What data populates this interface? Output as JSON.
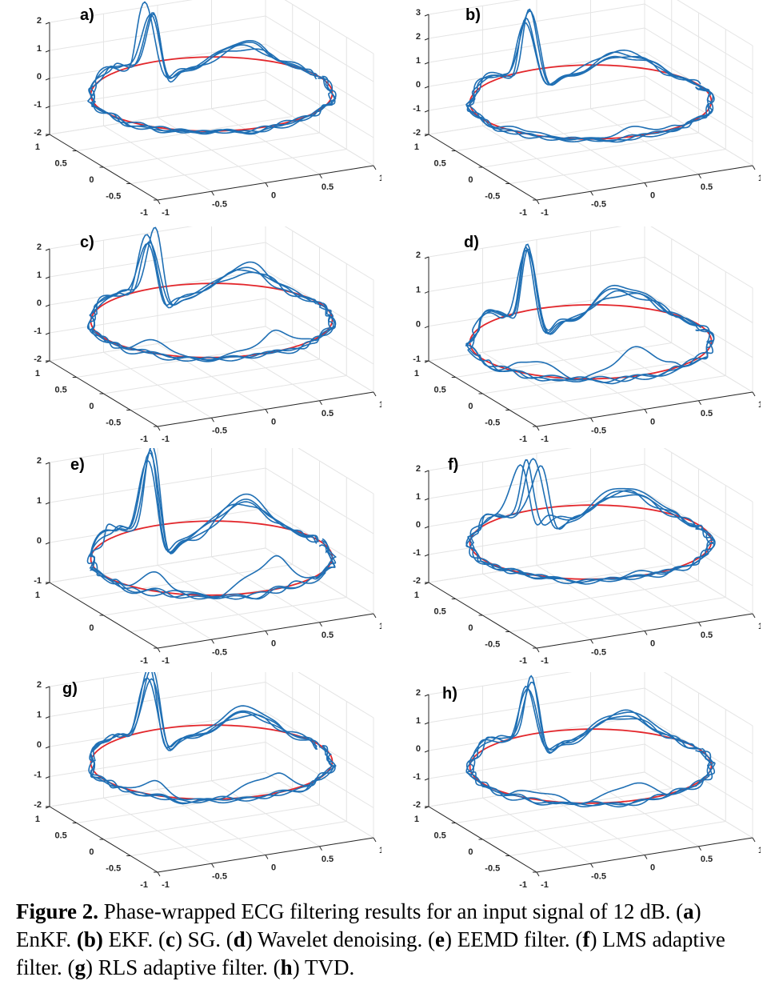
{
  "colors": {
    "trace": "#1f6fb4",
    "reference": "#e3262b",
    "grid": "#e4e4e4",
    "axis": "#262626"
  },
  "chart_data": [
    {
      "type": "line",
      "label": "a)",
      "view": "3d",
      "xlim": [
        -1,
        1
      ],
      "ylim": [
        -1,
        1
      ],
      "zlim": [
        -2,
        2
      ],
      "xticks": [
        "-1",
        "-0.5",
        "0",
        "0.5",
        "1"
      ],
      "yticks": [
        "-1",
        "-0.5",
        "0",
        "0.5",
        "1"
      ],
      "zticks": [
        "-2",
        "-1",
        "0",
        "1",
        "2"
      ],
      "grid": true
    },
    {
      "type": "line",
      "label": "b)",
      "view": "3d",
      "xlim": [
        -1,
        1
      ],
      "ylim": [
        -1,
        1
      ],
      "zlim": [
        -2,
        3
      ],
      "xticks": [
        "-1",
        "-0.5",
        "0",
        "0.5",
        "1"
      ],
      "yticks": [
        "-1",
        "-0.5",
        "0",
        "0.5",
        "1"
      ],
      "zticks": [
        "-2",
        "-1",
        "0",
        "1",
        "2",
        "3"
      ],
      "grid": true
    },
    {
      "type": "line",
      "label": "c)",
      "view": "3d",
      "xlim": [
        -1,
        1
      ],
      "ylim": [
        -1,
        1
      ],
      "zlim": [
        -2,
        2
      ],
      "xticks": [
        "-1",
        "-0.5",
        "0",
        "0.5",
        "1"
      ],
      "yticks": [
        "-1",
        "-0.5",
        "0",
        "0.5",
        "1"
      ],
      "zticks": [
        "-2",
        "-1",
        "0",
        "1",
        "2"
      ],
      "grid": true
    },
    {
      "type": "line",
      "label": "d)",
      "view": "3d",
      "xlim": [
        -1,
        1
      ],
      "ylim": [
        -1,
        1
      ],
      "zlim": [
        -1,
        2
      ],
      "xticks": [
        "-1",
        "-0.5",
        "0",
        "0.5",
        "1"
      ],
      "yticks": [
        "-1",
        "-0.5",
        "0",
        "0.5",
        "1"
      ],
      "zticks": [
        "-1",
        "0",
        "1",
        "2"
      ],
      "grid": true
    },
    {
      "type": "line",
      "label": "e)",
      "view": "3d",
      "xlim": [
        -1,
        1
      ],
      "ylim": [
        -1,
        1
      ],
      "zlim": [
        -1,
        2
      ],
      "xticks": [
        "-1",
        "-0.5",
        "0",
        "0.5",
        "1"
      ],
      "yticks": [
        "-1",
        "0",
        "1"
      ],
      "zticks": [
        "-1",
        "0",
        "1",
        "2"
      ],
      "grid": true
    },
    {
      "type": "line",
      "label": "f)",
      "view": "3d",
      "xlim": [
        -1,
        1
      ],
      "ylim": [
        -1,
        1
      ],
      "zlim": [
        -2,
        2
      ],
      "xticks": [
        "-1",
        "-0.5",
        "0",
        "0.5",
        "1"
      ],
      "yticks": [
        "-1",
        "-0.5",
        "0",
        "0.5",
        "1"
      ],
      "zticks": [
        "-2",
        "-1",
        "0",
        "1",
        "2"
      ],
      "grid": true
    },
    {
      "type": "line",
      "label": "g)",
      "view": "3d",
      "xlim": [
        -1,
        1
      ],
      "ylim": [
        -1,
        1
      ],
      "zlim": [
        -2,
        2
      ],
      "xticks": [
        "-1",
        "-0.5",
        "0",
        "0.5",
        "1"
      ],
      "yticks": [
        "-1",
        "-0.5",
        "0",
        "0.5",
        "1"
      ],
      "zticks": [
        "-2",
        "-1",
        "0",
        "1",
        "2"
      ],
      "grid": true
    },
    {
      "type": "line",
      "label": "h)",
      "view": "3d",
      "xlim": [
        -1,
        1
      ],
      "ylim": [
        -1,
        1
      ],
      "zlim": [
        -2,
        2
      ],
      "xticks": [
        "-1",
        "-0.5",
        "0",
        "0.5",
        "1"
      ],
      "yticks": [
        "-1",
        "-0.5",
        "0",
        "0.5",
        "1"
      ],
      "zticks": [
        "-2",
        "-1",
        "0",
        "1",
        "2"
      ],
      "grid": true
    }
  ],
  "caption": {
    "fig": "Figure 2.",
    "p0": " Phase-wrapped ECG filtering results for an input signal of 12 dB. (",
    "a": "a",
    "ta": ") EnKF. ",
    "b": "(b)",
    "tb": " EKF. (",
    "c": "c",
    "tc": ") SG. (",
    "d": "d",
    "td": ") Wavelet denoising. (",
    "e": "e",
    "te": ") EEMD filter. (",
    "f": "f",
    "tf": ") LMS adaptive filter. (",
    "g": "g",
    "tg": ") RLS adaptive filter. (",
    "h": "h",
    "th": ") TVD."
  }
}
